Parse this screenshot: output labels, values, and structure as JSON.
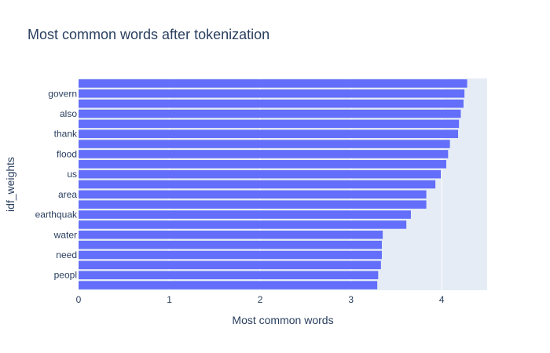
{
  "chart_data": {
    "type": "bar",
    "orientation": "horizontal",
    "title": "Most common words after tokenization",
    "xlabel": "Most common words",
    "ylabel": "idf_weights",
    "xlim": [
      0,
      4.5
    ],
    "x_ticks": [
      0,
      1,
      2,
      3,
      4
    ],
    "grid": true,
    "colors": {
      "bar": "#636efa",
      "plot_bg": "#e5ecf6",
      "grid": "#ffffff",
      "text": "#2a3f5f"
    },
    "categories_bottom_to_top": [
      "",
      "peopl",
      "",
      "need",
      "",
      "water",
      "",
      "earthquak",
      "",
      "area",
      "",
      "us",
      "",
      "flood",
      "",
      "thank",
      "",
      "also",
      "",
      "govern",
      ""
    ],
    "values_bottom_to_top": [
      3.29,
      3.3,
      3.33,
      3.34,
      3.34,
      3.35,
      3.61,
      3.66,
      3.83,
      3.83,
      3.93,
      3.99,
      4.05,
      4.07,
      4.09,
      4.18,
      4.19,
      4.21,
      4.24,
      4.25,
      4.28
    ]
  }
}
